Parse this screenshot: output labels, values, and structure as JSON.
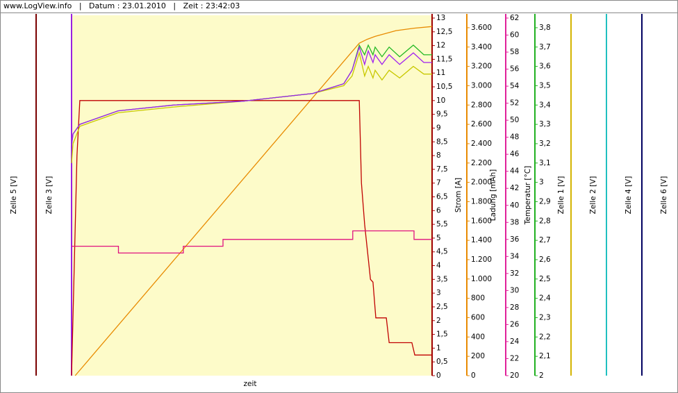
{
  "chart_data": {
    "type": "line",
    "header": "www.LogView.info   |   Datum : 23.01.2010   |   Zeit : 23:42:03",
    "xlabel": "zeit",
    "xlim": [
      0,
      100
    ],
    "axes": [
      {
        "label": "Zelle 5 [V]",
        "color": "#7a0000"
      },
      {
        "label": "Zelle 3 [V]",
        "color": "#9a20e0"
      },
      {
        "label": "Strom [A]",
        "color": "#a00000",
        "lim": [
          0,
          13
        ],
        "ticks": [
          0,
          {
            "value": 0.5,
            "label": "0,5"
          },
          1,
          {
            "value": 1.5,
            "label": "1,5"
          },
          2,
          {
            "value": 2.5,
            "label": "2,5"
          },
          3,
          {
            "value": 3.5,
            "label": "3,5"
          },
          4,
          {
            "value": 4.5,
            "label": "4,5"
          },
          5,
          {
            "value": 5.5,
            "label": "5,5"
          },
          6,
          {
            "value": 6.5,
            "label": "6,5"
          },
          7,
          {
            "value": 7.5,
            "label": "7,5"
          },
          8,
          {
            "value": 8.5,
            "label": "8,5"
          },
          9,
          {
            "value": 9.5,
            "label": "9,5"
          },
          10,
          {
            "value": 10.5,
            "label": "10,5"
          },
          11,
          {
            "value": 11.5,
            "label": "11,5"
          },
          12,
          {
            "value": 12.5,
            "label": "12,5"
          },
          13
        ]
      },
      {
        "label": "Ladung [mAh]",
        "color": "#e88a00",
        "lim": [
          0,
          3700
        ],
        "ticks": [
          0,
          200,
          400,
          600,
          800,
          {
            "value": 1000,
            "label": "1.000"
          },
          {
            "value": 1200,
            "label": "1.200"
          },
          {
            "value": 1400,
            "label": "1.400"
          },
          {
            "value": 1600,
            "label": "1.600"
          },
          {
            "value": 1800,
            "label": "1.800"
          },
          {
            "value": 2000,
            "label": "2.000"
          },
          {
            "value": 2200,
            "label": "2.200"
          },
          {
            "value": 2400,
            "label": "2.400"
          },
          {
            "value": 2600,
            "label": "2.600"
          },
          {
            "value": 2800,
            "label": "2.800"
          },
          {
            "value": 3000,
            "label": "3.000"
          },
          {
            "value": 3200,
            "label": "3.200"
          },
          {
            "value": 3400,
            "label": "3.400"
          },
          {
            "value": 3600,
            "label": "3.600"
          }
        ]
      },
      {
        "label": "Temperatur [°C]",
        "color": "#e0209a",
        "lim": [
          20,
          62
        ],
        "ticks": [
          20,
          22,
          24,
          26,
          28,
          30,
          32,
          34,
          36,
          38,
          40,
          42,
          44,
          46,
          48,
          50,
          52,
          54,
          56,
          58,
          60,
          62
        ]
      },
      {
        "label": "Zelle 1 [V]",
        "color": "#20b020",
        "lim": [
          2,
          3.85
        ],
        "ticks": [
          2,
          {
            "value": 2.1,
            "label": "2,1"
          },
          {
            "value": 2.2,
            "label": "2,2"
          },
          {
            "value": 2.3,
            "label": "2,3"
          },
          {
            "value": 2.4,
            "label": "2,4"
          },
          {
            "value": 2.5,
            "label": "2,5"
          },
          {
            "value": 2.6,
            "label": "2,6"
          },
          {
            "value": 2.7,
            "label": "2,7"
          },
          {
            "value": 2.8,
            "label": "2,8"
          },
          {
            "value": 2.9,
            "label": "2,9"
          },
          3,
          {
            "value": 3.1,
            "label": "3,1"
          },
          {
            "value": 3.2,
            "label": "3,2"
          },
          {
            "value": 3.3,
            "label": "3,3"
          },
          {
            "value": 3.4,
            "label": "3,4"
          },
          {
            "value": 3.5,
            "label": "3,5"
          },
          {
            "value": 3.6,
            "label": "3,6"
          },
          {
            "value": 3.7,
            "label": "3,7"
          },
          {
            "value": 3.8,
            "label": "3,8"
          }
        ]
      },
      {
        "label": "Zelle 2 [V]",
        "color": "#d4b400"
      },
      {
        "label": "Zelle 4 [V]",
        "color": "#20c0c0"
      },
      {
        "label": "Zelle 6 [V]",
        "color": "#000060"
      }
    ],
    "series": [
      {
        "axis": 3,
        "color": "#e88a00",
        "x": [
          1,
          79.8,
          82,
          84.2,
          90,
          95,
          100
        ],
        "values": [
          0,
          3440,
          3480,
          3510,
          3570,
          3595,
          3612
        ]
      },
      {
        "axis": 2,
        "color": "#c00000",
        "x": [
          0,
          1.5,
          2.3,
          79.8,
          80.4,
          81.3,
          82.1,
          82.9,
          83.6,
          84.4,
          87.3,
          88.1,
          94.4,
          95.2,
          100
        ],
        "values": [
          0,
          8,
          10,
          10,
          7,
          5.5,
          4.5,
          3.5,
          3.4,
          2.1,
          2.1,
          1.2,
          1.2,
          0.75,
          0.75
        ]
      },
      {
        "axis": 4,
        "color": "#e0107f",
        "x": [
          0,
          13,
          13,
          31,
          31,
          42,
          42,
          78,
          78,
          95,
          95,
          100
        ],
        "values": [
          35.2,
          35.2,
          34.4,
          34.4,
          35.2,
          35.2,
          36,
          36,
          37,
          37,
          36,
          36
        ]
      },
      {
        "axis": 5,
        "color": "#c8c800",
        "x": [
          0,
          0.4,
          2.3,
          12.9,
          28.3,
          47.6,
          66.9,
          75.5,
          77.8,
          79.8,
          81.3,
          82.3,
          83.6,
          84.2,
          86.1,
          88.1,
          91,
          94.8,
          97.7,
          100
        ],
        "values": [
          3.1,
          3.2,
          3.29,
          3.36,
          3.39,
          3.42,
          3.46,
          3.5,
          3.55,
          3.67,
          3.55,
          3.6,
          3.54,
          3.58,
          3.53,
          3.58,
          3.54,
          3.6,
          3.56,
          3.56
        ]
      },
      {
        "axis": 5,
        "color": "#22b822",
        "x": [
          0,
          0.4,
          2.3,
          12.9,
          28.3,
          47.6,
          66.9,
          75.5,
          77.8,
          79.8,
          81.3,
          82.3,
          83.6,
          84.2,
          86.1,
          88.1,
          91,
          94.8,
          97.7,
          100
        ],
        "values": [
          3.19,
          3.25,
          3.3,
          3.37,
          3.4,
          3.42,
          3.46,
          3.51,
          3.58,
          3.71,
          3.66,
          3.71,
          3.66,
          3.7,
          3.65,
          3.7,
          3.65,
          3.71,
          3.66,
          3.66
        ]
      },
      {
        "axis": 5,
        "color": "#a020f0",
        "x": [
          0,
          0.4,
          2.3,
          12.9,
          28.3,
          47.6,
          66.9,
          75.5,
          77.8,
          79.8,
          81.3,
          82.3,
          83.6,
          84.2,
          86.1,
          88.1,
          91,
          94.8,
          97.7,
          100
        ],
        "values": [
          3.19,
          3.25,
          3.3,
          3.37,
          3.4,
          3.42,
          3.46,
          3.51,
          3.58,
          3.7,
          3.61,
          3.68,
          3.62,
          3.66,
          3.61,
          3.66,
          3.61,
          3.67,
          3.62,
          3.62
        ]
      }
    ]
  }
}
